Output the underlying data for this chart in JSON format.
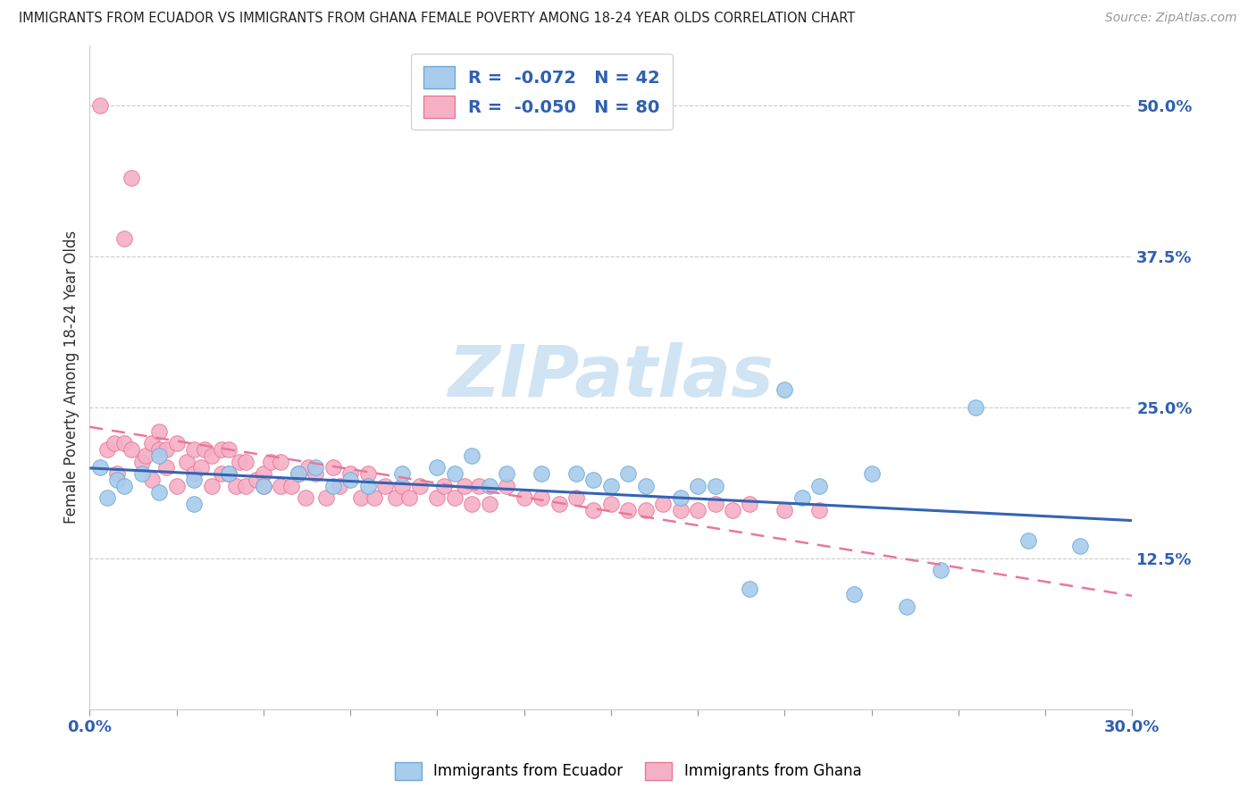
{
  "title": "IMMIGRANTS FROM ECUADOR VS IMMIGRANTS FROM GHANA FEMALE POVERTY AMONG 18-24 YEAR OLDS CORRELATION CHART",
  "source": "Source: ZipAtlas.com",
  "ylabel": "Female Poverty Among 18-24 Year Olds",
  "xlim": [
    0.0,
    0.3
  ],
  "ylim": [
    0.0,
    0.55
  ],
  "yticks": [
    0.0,
    0.125,
    0.25,
    0.375,
    0.5
  ],
  "yticklabels": [
    "",
    "12.5%",
    "25.0%",
    "37.5%",
    "50.0%"
  ],
  "xtick_vals": [
    0.0,
    0.025,
    0.05,
    0.075,
    0.1,
    0.125,
    0.15,
    0.175,
    0.2,
    0.225,
    0.25,
    0.275,
    0.3
  ],
  "xticklabels_show": [
    "0.0%",
    "",
    "",
    "",
    "",
    "",
    "",
    "",
    "",
    "",
    "",
    "",
    "30.0%"
  ],
  "ecuador_color": "#A8CCEC",
  "ecuador_edge": "#6EA8D8",
  "ghana_color": "#F5B0C5",
  "ghana_edge": "#E87898",
  "ecuador_R": -0.072,
  "ecuador_N": 42,
  "ghana_R": -0.05,
  "ghana_N": 80,
  "ecuador_line_color": "#3464B4",
  "ghana_line_color": "#E87898",
  "watermark_text": "ZIPatlas",
  "watermark_color": "#D0E4F4",
  "ecuador_x": [
    0.003,
    0.005,
    0.008,
    0.01,
    0.015,
    0.02,
    0.02,
    0.03,
    0.03,
    0.04,
    0.05,
    0.06,
    0.065,
    0.07,
    0.075,
    0.08,
    0.09,
    0.1,
    0.105,
    0.11,
    0.115,
    0.12,
    0.13,
    0.14,
    0.145,
    0.15,
    0.155,
    0.16,
    0.17,
    0.175,
    0.18,
    0.19,
    0.2,
    0.205,
    0.21,
    0.22,
    0.225,
    0.235,
    0.245,
    0.255,
    0.27,
    0.285
  ],
  "ecuador_y": [
    0.2,
    0.175,
    0.19,
    0.185,
    0.195,
    0.21,
    0.18,
    0.19,
    0.17,
    0.195,
    0.185,
    0.195,
    0.2,
    0.185,
    0.19,
    0.185,
    0.195,
    0.2,
    0.195,
    0.21,
    0.185,
    0.195,
    0.195,
    0.195,
    0.19,
    0.185,
    0.195,
    0.185,
    0.175,
    0.185,
    0.185,
    0.1,
    0.265,
    0.175,
    0.185,
    0.095,
    0.195,
    0.085,
    0.115,
    0.25,
    0.14,
    0.135
  ],
  "ghana_x": [
    0.003,
    0.005,
    0.007,
    0.008,
    0.01,
    0.01,
    0.012,
    0.012,
    0.015,
    0.016,
    0.018,
    0.018,
    0.02,
    0.02,
    0.022,
    0.022,
    0.025,
    0.025,
    0.028,
    0.03,
    0.03,
    0.032,
    0.033,
    0.035,
    0.035,
    0.038,
    0.038,
    0.04,
    0.04,
    0.042,
    0.043,
    0.045,
    0.045,
    0.048,
    0.05,
    0.05,
    0.052,
    0.055,
    0.055,
    0.058,
    0.06,
    0.062,
    0.063,
    0.065,
    0.068,
    0.07,
    0.072,
    0.075,
    0.078,
    0.08,
    0.082,
    0.085,
    0.088,
    0.09,
    0.092,
    0.095,
    0.1,
    0.102,
    0.105,
    0.108,
    0.11,
    0.112,
    0.115,
    0.12,
    0.125,
    0.13,
    0.135,
    0.14,
    0.145,
    0.15,
    0.155,
    0.16,
    0.165,
    0.17,
    0.175,
    0.18,
    0.185,
    0.19,
    0.2,
    0.21
  ],
  "ghana_y": [
    0.5,
    0.215,
    0.22,
    0.195,
    0.22,
    0.39,
    0.215,
    0.44,
    0.205,
    0.21,
    0.19,
    0.22,
    0.215,
    0.23,
    0.2,
    0.215,
    0.185,
    0.22,
    0.205,
    0.195,
    0.215,
    0.2,
    0.215,
    0.185,
    0.21,
    0.195,
    0.215,
    0.195,
    0.215,
    0.185,
    0.205,
    0.185,
    0.205,
    0.19,
    0.195,
    0.185,
    0.205,
    0.185,
    0.205,
    0.185,
    0.195,
    0.175,
    0.2,
    0.195,
    0.175,
    0.2,
    0.185,
    0.195,
    0.175,
    0.195,
    0.175,
    0.185,
    0.175,
    0.185,
    0.175,
    0.185,
    0.175,
    0.185,
    0.175,
    0.185,
    0.17,
    0.185,
    0.17,
    0.185,
    0.175,
    0.175,
    0.17,
    0.175,
    0.165,
    0.17,
    0.165,
    0.165,
    0.17,
    0.165,
    0.165,
    0.17,
    0.165,
    0.17,
    0.165,
    0.165
  ]
}
